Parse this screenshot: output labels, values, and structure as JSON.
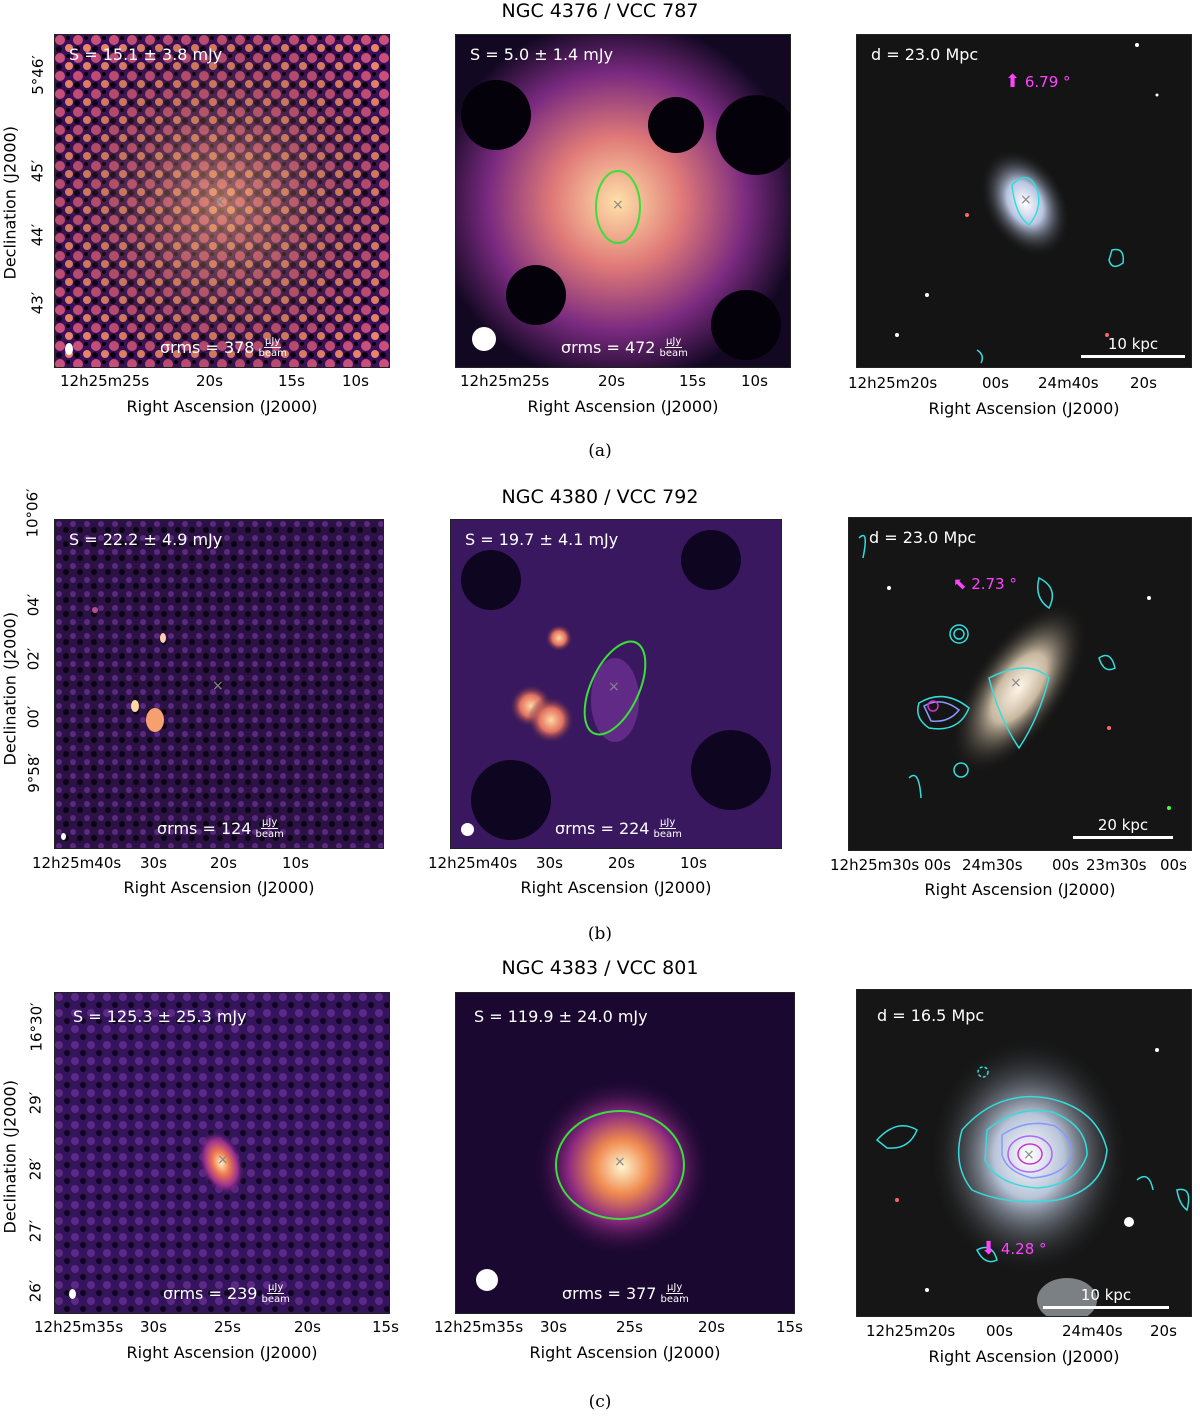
{
  "rows": [
    {
      "title": "NGC 4376 / VCC 787",
      "caption": "(a)",
      "p1": {
        "flux": "S = 15.1 ± 3.8 mJy",
        "rms": "σrms = 378",
        "unit_num": "μJy",
        "unit_den": "beam"
      },
      "p2": {
        "flux": "S = 5.0 ± 1.4 mJy",
        "rms": "σrms = 472",
        "unit_num": "μJy",
        "unit_den": "beam"
      },
      "p3": {
        "dist": "d = 23.0 Mpc",
        "incl": "6.79 °",
        "scale": "10 kpc"
      },
      "yticks": [
        "5°46′",
        "45′",
        "44′",
        "43′"
      ],
      "xticks_radio": [
        "12h25m25s",
        "20s",
        "15s",
        "10s"
      ],
      "xticks_opt": [
        "12h25m20s",
        "00s",
        "24m40s",
        "20s"
      ]
    },
    {
      "title": "NGC 4380 / VCC 792",
      "caption": "(b)",
      "p1": {
        "flux": "S = 22.2 ± 4.9 mJy",
        "rms": "σrms = 124",
        "unit_num": "μJy",
        "unit_den": "beam"
      },
      "p2": {
        "flux": "S = 19.7 ± 4.1 mJy",
        "rms": "σrms = 224",
        "unit_num": "μJy",
        "unit_den": "beam"
      },
      "p3": {
        "dist": "d = 23.0 Mpc",
        "incl": "2.73 °",
        "scale": "20 kpc"
      },
      "yticks": [
        "10°06′",
        "04′",
        "02′",
        "00′",
        "9°58′"
      ],
      "xticks_radio": [
        "12h25m40s",
        "30s",
        "20s",
        "10s"
      ],
      "xticks_opt": [
        "12h25m30s",
        "00s",
        "24m30s",
        "00s",
        "23m30s",
        "00s"
      ]
    },
    {
      "title": "NGC 4383 / VCC 801",
      "caption": "(c)",
      "p1": {
        "flux": "S = 125.3 ± 25.3 mJy",
        "rms": "σrms = 239",
        "unit_num": "μJy",
        "unit_den": "beam"
      },
      "p2": {
        "flux": "S = 119.9 ± 24.0 mJy",
        "rms": "σrms = 377",
        "unit_num": "μJy",
        "unit_den": "beam"
      },
      "p3": {
        "dist": "d = 16.5 Mpc",
        "incl": "4.28 °",
        "scale": "10 kpc"
      },
      "yticks": [
        "16°30′",
        "29′",
        "28′",
        "27′",
        "26′"
      ],
      "xticks_radio": [
        "12h25m35s",
        "30s",
        "25s",
        "20s",
        "15s"
      ],
      "xticks_opt": [
        "12h25m20s",
        "00s",
        "24m40s",
        "20s"
      ]
    }
  ],
  "axis": {
    "x": "Right Ascension (J2000)",
    "y": "Declination (J2000)"
  }
}
